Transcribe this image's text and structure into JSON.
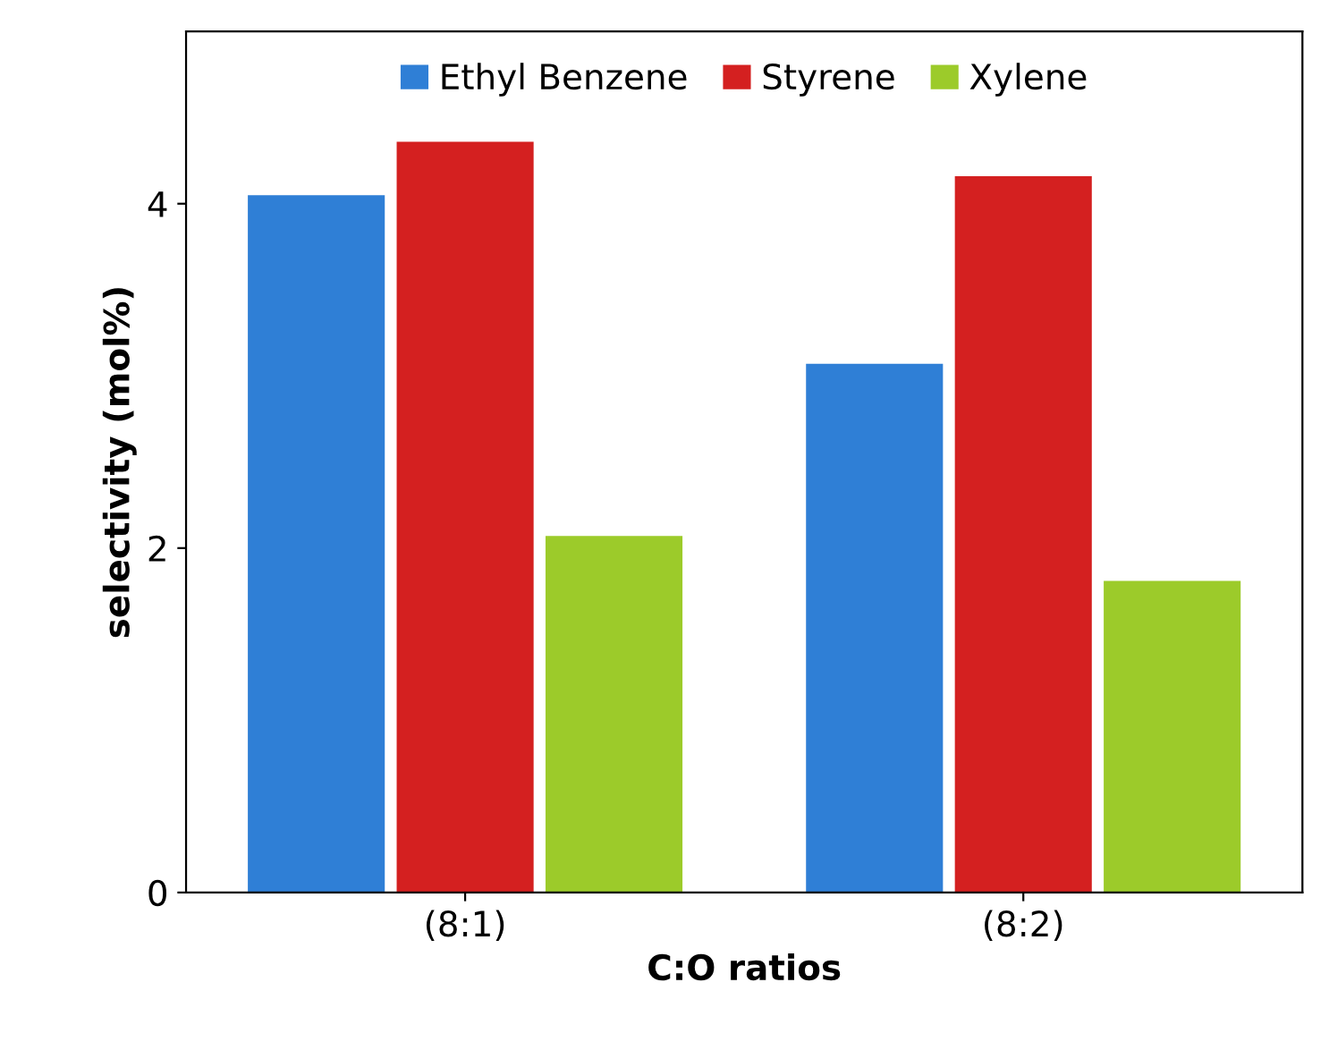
{
  "chart_data": {
    "type": "bar",
    "xlabel": "C:O ratios",
    "ylabel": "selectivity (mol%)",
    "categories": [
      "(8:1)",
      "(8:2)"
    ],
    "series": [
      {
        "name": "Ethyl Benzene",
        "color": "#2f7fd6",
        "values": [
          4.05,
          3.07
        ]
      },
      {
        "name": "Styrene",
        "color": "#d42020",
        "values": [
          4.36,
          4.16
        ]
      },
      {
        "name": "Xylene",
        "color": "#9ccb2a",
        "values": [
          2.07,
          1.81
        ]
      }
    ],
    "ylim": [
      0,
      5
    ],
    "yticks": [
      0,
      2,
      4
    ],
    "grid": false,
    "legend": "top"
  }
}
